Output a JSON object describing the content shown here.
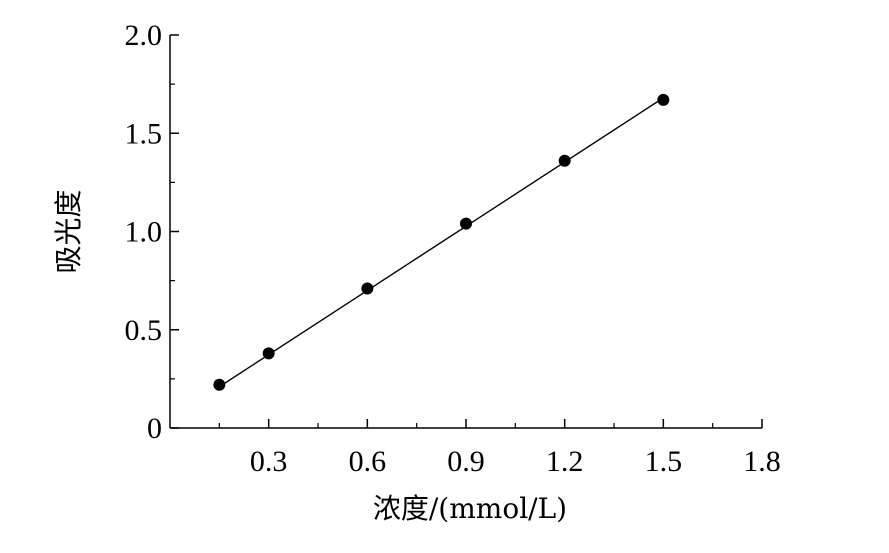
{
  "chart_data": {
    "type": "scatter",
    "x": [
      0.15,
      0.3,
      0.6,
      0.9,
      1.2,
      1.5
    ],
    "y": [
      0.22,
      0.38,
      0.71,
      1.04,
      1.36,
      1.67
    ],
    "fit_line": {
      "x": [
        0.15,
        1.5
      ],
      "y": [
        0.21,
        1.68
      ]
    },
    "xlabel": "浓度/(mmol/L)",
    "ylabel": "吸光度",
    "xlim": [
      0,
      1.8
    ],
    "ylim": [
      0,
      2.0
    ],
    "x_ticks": [
      0.3,
      0.6,
      0.9,
      1.2,
      1.5,
      1.8
    ],
    "x_tick_labels": [
      "0.3",
      "0.6",
      "0.9",
      "1.2",
      "1.5",
      "1.8"
    ],
    "y_ticks": [
      0,
      0.5,
      1.0,
      1.5,
      2.0
    ],
    "y_tick_labels": [
      "0",
      "0.5",
      "1.0",
      "1.5",
      "2.0"
    ],
    "grid": false,
    "colors": {
      "marker": "#000000",
      "line": "#000000",
      "axis": "#000000"
    }
  }
}
